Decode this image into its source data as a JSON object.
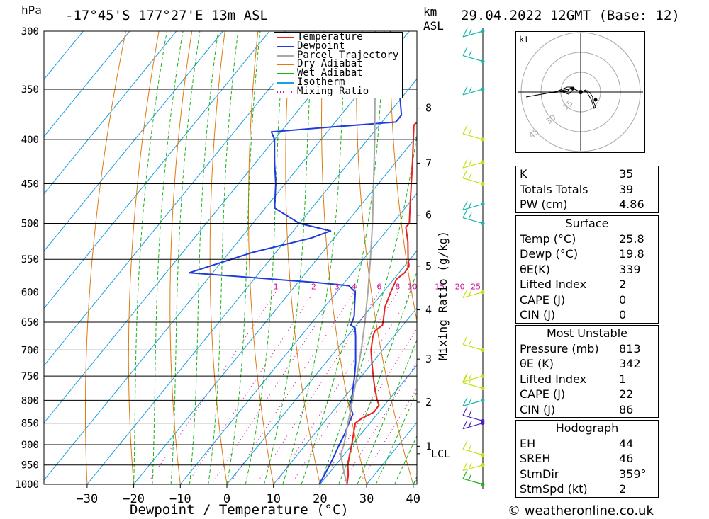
{
  "header": {
    "pressure_unit": "hPa",
    "location": "-17°45'S  177°27'E  13m  ASL",
    "height_unit_km": "km",
    "height_unit_asl": "ASL",
    "datetime": "29.04.2022  12GMT  (Base: 12)"
  },
  "footer": {
    "xlabel": "Dewpoint / Temperature (°C)",
    "copyright": "© weatheronline.co.uk",
    "mixing_ratio_label": "Mixing Ratio (g/kg)"
  },
  "hodograph": {
    "unit": "kt",
    "ring_labels": [
      "15",
      "30",
      "45"
    ]
  },
  "chart_data": {
    "type": "skew-t",
    "xlabel": "Dewpoint / Temperature (°C)",
    "x_ticks": [
      -30,
      -20,
      -10,
      0,
      10,
      20,
      30,
      40
    ],
    "x_tick_labels": [
      "−30",
      "−20",
      "−10",
      "0",
      "10",
      "20",
      "30",
      "40"
    ],
    "y_pressure_levels": [
      300,
      350,
      400,
      450,
      500,
      550,
      600,
      650,
      700,
      750,
      800,
      850,
      900,
      950,
      1000
    ],
    "ylim_hpa": [
      1000,
      300
    ],
    "height_km_labels": [
      {
        "km": "8",
        "p": 368
      },
      {
        "km": "7",
        "p": 426
      },
      {
        "km": "6",
        "p": 489
      },
      {
        "km": "5",
        "p": 560
      },
      {
        "km": "4",
        "p": 629
      },
      {
        "km": "3",
        "p": 717
      },
      {
        "km": "2",
        "p": 804
      },
      {
        "km": "1",
        "p": 904
      },
      {
        "km": "LCL",
        "p": 922
      }
    ],
    "mixing_ratio_labels": [
      "1",
      "2",
      "3",
      "4",
      "6",
      "8",
      "10",
      "15",
      "20",
      "25"
    ],
    "legend": [
      "Temperature",
      "Dewpoint",
      "Parcel Trajectory",
      "Dry Adiabat",
      "Wet Adiabat",
      "Isotherm",
      "Mixing Ratio"
    ],
    "colors": {
      "temperature": "#e8221e",
      "dewpoint": "#1e3cdc",
      "parcel": "#a8a8a8",
      "dry_adiabat": "#e07a10",
      "wet_adiabat": "#1ab21a",
      "isotherm": "#1aa0e0",
      "mixing_ratio": "#d0109a"
    },
    "series": [
      {
        "name": "Temperature",
        "points": [
          {
            "p": 1000,
            "t": 25.8
          },
          {
            "p": 975,
            "t": 24.4
          },
          {
            "p": 950,
            "t": 22.6
          },
          {
            "p": 925,
            "t": 21.2
          },
          {
            "p": 900,
            "t": 19.9
          },
          {
            "p": 875,
            "t": 18.4
          },
          {
            "p": 850,
            "t": 16.9
          },
          {
            "p": 840,
            "t": 17.4
          },
          {
            "p": 825,
            "t": 19.0
          },
          {
            "p": 810,
            "t": 18.8
          },
          {
            "p": 800,
            "t": 17.6
          },
          {
            "p": 775,
            "t": 15.0
          },
          {
            "p": 750,
            "t": 12.5
          },
          {
            "p": 725,
            "t": 10.0
          },
          {
            "p": 700,
            "t": 7.5
          },
          {
            "p": 675,
            "t": 5.5
          },
          {
            "p": 665,
            "t": 5.0
          },
          {
            "p": 655,
            "t": 5.6
          },
          {
            "p": 645,
            "t": 4.8
          },
          {
            "p": 625,
            "t": 3.0
          },
          {
            "p": 600,
            "t": 1.6
          },
          {
            "p": 580,
            "t": 0.6
          },
          {
            "p": 570,
            "t": 1.2
          },
          {
            "p": 560,
            "t": 1.0
          },
          {
            "p": 550,
            "t": -0.4
          },
          {
            "p": 525,
            "t": -3.5
          },
          {
            "p": 505,
            "t": -6.5
          },
          {
            "p": 500,
            "t": -6.4
          },
          {
            "p": 475,
            "t": -9.6
          },
          {
            "p": 450,
            "t": -12.9
          },
          {
            "p": 425,
            "t": -16.4
          },
          {
            "p": 400,
            "t": -20.2
          },
          {
            "p": 385,
            "t": -22.6
          },
          {
            "p": 380,
            "t": -22.3
          },
          {
            "p": 370,
            "t": -23.8
          },
          {
            "p": 350,
            "t": -27.6
          },
          {
            "p": 325,
            "t": -32.3
          },
          {
            "p": 300,
            "t": -37.4
          }
        ]
      },
      {
        "name": "Dewpoint",
        "points": [
          {
            "p": 1000,
            "t": 19.8
          },
          {
            "p": 975,
            "t": 19.3
          },
          {
            "p": 950,
            "t": 18.7
          },
          {
            "p": 925,
            "t": 18.0
          },
          {
            "p": 900,
            "t": 17.2
          },
          {
            "p": 875,
            "t": 16.5
          },
          {
            "p": 850,
            "t": 15.5
          },
          {
            "p": 830,
            "t": 14.8
          },
          {
            "p": 810,
            "t": 12.5
          },
          {
            "p": 800,
            "t": 12.1
          },
          {
            "p": 775,
            "t": 10.3
          },
          {
            "p": 750,
            "t": 8.5
          },
          {
            "p": 725,
            "t": 6.5
          },
          {
            "p": 700,
            "t": 4.2
          },
          {
            "p": 675,
            "t": 1.8
          },
          {
            "p": 660,
            "t": 0.2
          },
          {
            "p": 655,
            "t": -1.2
          },
          {
            "p": 640,
            "t": -2.0
          },
          {
            "p": 620,
            "t": -4.0
          },
          {
            "p": 600,
            "t": -6.0
          },
          {
            "p": 590,
            "t": -8.5
          },
          {
            "p": 585,
            "t": -16.0
          },
          {
            "p": 570,
            "t": -45.0
          },
          {
            "p": 540,
            "t": -35.0
          },
          {
            "p": 520,
            "t": -25.0
          },
          {
            "p": 510,
            "t": -22.0
          },
          {
            "p": 500,
            "t": -30.0
          },
          {
            "p": 480,
            "t": -38.0
          },
          {
            "p": 450,
            "t": -42.0
          },
          {
            "p": 425,
            "t": -46.0
          },
          {
            "p": 400,
            "t": -50.0
          },
          {
            "p": 392,
            "t": -52.0
          },
          {
            "p": 387,
            "t": -40.0
          },
          {
            "p": 382,
            "t": -27.0
          },
          {
            "p": 375,
            "t": -27.0
          },
          {
            "p": 350,
            "t": -32.0
          },
          {
            "p": 325,
            "t": -38.0
          },
          {
            "p": 300,
            "t": -44.0
          }
        ]
      },
      {
        "name": "Parcel Trajectory",
        "points": [
          {
            "p": 1000,
            "t": 25.8
          },
          {
            "p": 975,
            "t": 23.6
          },
          {
            "p": 950,
            "t": 21.5
          },
          {
            "p": 925,
            "t": 19.3
          },
          {
            "p": 900,
            "t": 18.2
          },
          {
            "p": 875,
            "t": 16.8
          },
          {
            "p": 850,
            "t": 15.3
          },
          {
            "p": 800,
            "t": 12.3
          },
          {
            "p": 750,
            "t": 9.0
          },
          {
            "p": 700,
            "t": 5.4
          },
          {
            "p": 650,
            "t": 1.3
          },
          {
            "p": 600,
            "t": -3.3
          },
          {
            "p": 550,
            "t": -8.5
          },
          {
            "p": 500,
            "t": -14.3
          },
          {
            "p": 450,
            "t": -21.0
          },
          {
            "p": 400,
            "t": -28.5
          },
          {
            "p": 350,
            "t": -37.2
          },
          {
            "p": 300,
            "t": -47.3
          }
        ]
      }
    ],
    "wind_barb_levels": [
      1000,
      950,
      925,
      850,
      845,
      800,
      775,
      750,
      700,
      600,
      500,
      475,
      450,
      425,
      400,
      350,
      325,
      300
    ]
  },
  "indices": [
    {
      "label": "K",
      "value": "35"
    },
    {
      "label": "Totals Totals",
      "value": "39"
    },
    {
      "label": "PW (cm)",
      "value": "4.86"
    }
  ],
  "surface": {
    "title": "Surface",
    "rows": [
      {
        "label": "Temp (°C)",
        "value": "25.8"
      },
      {
        "label": "Dewp (°C)",
        "value": "19.8"
      },
      {
        "label": "θE(K)",
        "value": "339"
      },
      {
        "label": "Lifted Index",
        "value": "2"
      },
      {
        "label": "CAPE (J)",
        "value": "0"
      },
      {
        "label": "CIN (J)",
        "value": "0"
      }
    ]
  },
  "most_unstable": {
    "title": "Most Unstable",
    "rows": [
      {
        "label": "Pressure (mb)",
        "value": "813"
      },
      {
        "label": "θE (K)",
        "value": "342"
      },
      {
        "label": "Lifted Index",
        "value": "1"
      },
      {
        "label": "CAPE (J)",
        "value": "22"
      },
      {
        "label": "CIN (J)",
        "value": "86"
      }
    ]
  },
  "hodograph_table": {
    "title": "Hodograph",
    "rows": [
      {
        "label": "EH",
        "value": "44"
      },
      {
        "label": "SREH",
        "value": "46"
      },
      {
        "label": "StmDir",
        "value": "359°"
      },
      {
        "label": "StmSpd (kt)",
        "value": "2"
      }
    ]
  }
}
